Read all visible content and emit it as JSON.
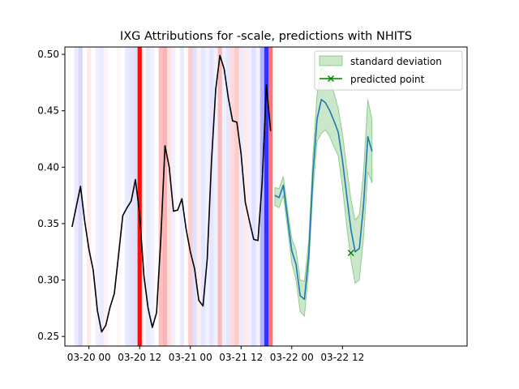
{
  "chart_data": {
    "type": "line",
    "title": "IXG Attributions for -scale, predictions with NHITS",
    "xlabel": "",
    "ylabel": "",
    "x_unit": "hours",
    "xlim": [
      -5.7,
      89.5
    ],
    "ylim": [
      0.2415,
      0.5065
    ],
    "grid": false,
    "legend_position": "upper-right",
    "x_ticks": [
      {
        "value": 0,
        "label": "03-20 00"
      },
      {
        "value": 12,
        "label": "03-20 12"
      },
      {
        "value": 24,
        "label": "03-21 00"
      },
      {
        "value": 36,
        "label": "03-21 12"
      },
      {
        "value": 48,
        "label": "03-22 00"
      },
      {
        "value": 60,
        "label": "03-22 12"
      }
    ],
    "y_ticks": [
      {
        "value": 0.25,
        "label": "0.25"
      },
      {
        "value": 0.3,
        "label": "0.30"
      },
      {
        "value": 0.35,
        "label": "0.35"
      },
      {
        "value": 0.4,
        "label": "0.40"
      },
      {
        "value": 0.45,
        "label": "0.45"
      },
      {
        "value": 0.5,
        "label": "0.50"
      }
    ],
    "series": [
      {
        "kind": "history",
        "color": "#000000",
        "points": [
          [
            -4,
            0.347
          ],
          [
            -3,
            0.365
          ],
          [
            -2,
            0.383
          ],
          [
            -1,
            0.352
          ],
          [
            0,
            0.327
          ],
          [
            1,
            0.309
          ],
          [
            2,
            0.273
          ],
          [
            3,
            0.254
          ],
          [
            4,
            0.26
          ],
          [
            5,
            0.276
          ],
          [
            6,
            0.288
          ],
          [
            7,
            0.322
          ],
          [
            8,
            0.357
          ],
          [
            9,
            0.364
          ],
          [
            10,
            0.37
          ],
          [
            11,
            0.389
          ],
          [
            12,
            0.358
          ],
          [
            13,
            0.304
          ],
          [
            14,
            0.275
          ],
          [
            15,
            0.258
          ],
          [
            16,
            0.271
          ],
          [
            17,
            0.336
          ],
          [
            18,
            0.419
          ],
          [
            19,
            0.4
          ],
          [
            20,
            0.361
          ],
          [
            21,
            0.362
          ],
          [
            22,
            0.372
          ],
          [
            23,
            0.345
          ],
          [
            24,
            0.325
          ],
          [
            25,
            0.31
          ],
          [
            26,
            0.282
          ],
          [
            27,
            0.277
          ],
          [
            28,
            0.319
          ],
          [
            29,
            0.405
          ],
          [
            30,
            0.469
          ],
          [
            31,
            0.499
          ],
          [
            32,
            0.487
          ],
          [
            33,
            0.461
          ],
          [
            34,
            0.441
          ],
          [
            35,
            0.44
          ],
          [
            36,
            0.412
          ],
          [
            37,
            0.369
          ],
          [
            38,
            0.352
          ],
          [
            39,
            0.336
          ],
          [
            40,
            0.335
          ],
          [
            41,
            0.387
          ],
          [
            42,
            0.473
          ],
          [
            43,
            0.432
          ]
        ]
      },
      {
        "kind": "prediction",
        "color": "#1f77b4",
        "points": [
          [
            44,
            0.375
          ],
          [
            45,
            0.373
          ],
          [
            46,
            0.384
          ],
          [
            47,
            0.355
          ],
          [
            48,
            0.326
          ],
          [
            49,
            0.314
          ],
          [
            50,
            0.286
          ],
          [
            51,
            0.283
          ],
          [
            52,
            0.321
          ],
          [
            53,
            0.394
          ],
          [
            54,
            0.443
          ],
          [
            55,
            0.46
          ],
          [
            56,
            0.457
          ],
          [
            57,
            0.45
          ],
          [
            58,
            0.441
          ],
          [
            59,
            0.431
          ],
          [
            60,
            0.406
          ],
          [
            61,
            0.375
          ],
          [
            62,
            0.345
          ],
          [
            63,
            0.325
          ],
          [
            64,
            0.328
          ],
          [
            65,
            0.367
          ],
          [
            66,
            0.427
          ],
          [
            67,
            0.414
          ]
        ]
      },
      {
        "name": "standard deviation",
        "kind": "band",
        "color": "#2ca02c",
        "opacity": 0.25,
        "upper": [
          0.382,
          0.381,
          0.392,
          0.363,
          0.337,
          0.327,
          0.3,
          0.299,
          0.334,
          0.41,
          0.465,
          0.488,
          0.485,
          0.476,
          0.466,
          0.452,
          0.43,
          0.4,
          0.372,
          0.353,
          0.358,
          0.397,
          0.46,
          0.442
        ],
        "lower": [
          0.366,
          0.364,
          0.375,
          0.346,
          0.315,
          0.3,
          0.272,
          0.268,
          0.308,
          0.378,
          0.423,
          0.43,
          0.433,
          0.427,
          0.418,
          0.41,
          0.382,
          0.348,
          0.318,
          0.297,
          0.3,
          0.338,
          0.396,
          0.386
        ]
      }
    ],
    "predicted_point": {
      "name": "predicted point",
      "x": 62,
      "y": 0.324,
      "color": "#008000",
      "marker": "x"
    },
    "attribution_bands": [
      {
        "x": -3,
        "color": "#0000ff",
        "alpha": 0.08
      },
      {
        "x": -2,
        "color": "#0000ff",
        "alpha": 0.15
      },
      {
        "x": 0,
        "color": "#ff0000",
        "alpha": 0.08
      },
      {
        "x": 2,
        "color": "#0000ff",
        "alpha": 0.06
      },
      {
        "x": 3,
        "color": "#0000ff",
        "alpha": 0.08
      },
      {
        "x": 4,
        "color": "#ff0000",
        "alpha": 0.05
      },
      {
        "x": 7,
        "color": "#ff0000",
        "alpha": 0.04
      },
      {
        "x": 9,
        "color": "#0000ff",
        "alpha": 0.08
      },
      {
        "x": 10,
        "color": "#0000ff",
        "alpha": 0.1
      },
      {
        "x": 11,
        "color": "#0000ff",
        "alpha": 0.12
      },
      {
        "x": 12,
        "color": "#ff0000",
        "alpha": 0.95
      },
      {
        "x": 13,
        "color": "#ff0000",
        "alpha": 0.04
      },
      {
        "x": 14,
        "color": "#0000ff",
        "alpha": 0.08
      },
      {
        "x": 15,
        "color": "#0000ff",
        "alpha": 0.05
      },
      {
        "x": 17,
        "color": "#ff0000",
        "alpha": 0.25
      },
      {
        "x": 18,
        "color": "#ff0000",
        "alpha": 0.3
      },
      {
        "x": 19,
        "color": "#ff0000",
        "alpha": 0.12
      },
      {
        "x": 20,
        "color": "#0000ff",
        "alpha": 0.06
      },
      {
        "x": 22,
        "color": "#0000ff",
        "alpha": 0.08
      },
      {
        "x": 24,
        "color": "#ff0000",
        "alpha": 0.2
      },
      {
        "x": 25,
        "color": "#0000ff",
        "alpha": 0.12
      },
      {
        "x": 26,
        "color": "#ff0000",
        "alpha": 0.06
      },
      {
        "x": 27,
        "color": "#0000ff",
        "alpha": 0.1
      },
      {
        "x": 28,
        "color": "#0000ff",
        "alpha": 0.06
      },
      {
        "x": 29,
        "color": "#0000ff",
        "alpha": 0.1
      },
      {
        "x": 30,
        "color": "#0000ff",
        "alpha": 0.06
      },
      {
        "x": 31,
        "color": "#ff0000",
        "alpha": 0.28
      },
      {
        "x": 32,
        "color": "#0000ff",
        "alpha": 0.06
      },
      {
        "x": 33,
        "color": "#0000ff",
        "alpha": 0.1
      },
      {
        "x": 34,
        "color": "#ff0000",
        "alpha": 0.15
      },
      {
        "x": 35,
        "color": "#ff0000",
        "alpha": 0.2
      },
      {
        "x": 36,
        "color": "#0000ff",
        "alpha": 0.08
      },
      {
        "x": 37,
        "color": "#ff0000",
        "alpha": 0.08
      },
      {
        "x": 38,
        "color": "#0000ff",
        "alpha": 0.06
      },
      {
        "x": 39,
        "color": "#0000ff",
        "alpha": 0.12
      },
      {
        "x": 40,
        "color": "#0000ff",
        "alpha": 0.06
      },
      {
        "x": 41,
        "color": "#0000ff",
        "alpha": 0.3
      },
      {
        "x": 42,
        "color": "#0000ff",
        "alpha": 0.8
      },
      {
        "x": 43,
        "color": "#ff0000",
        "alpha": 0.55
      }
    ]
  }
}
